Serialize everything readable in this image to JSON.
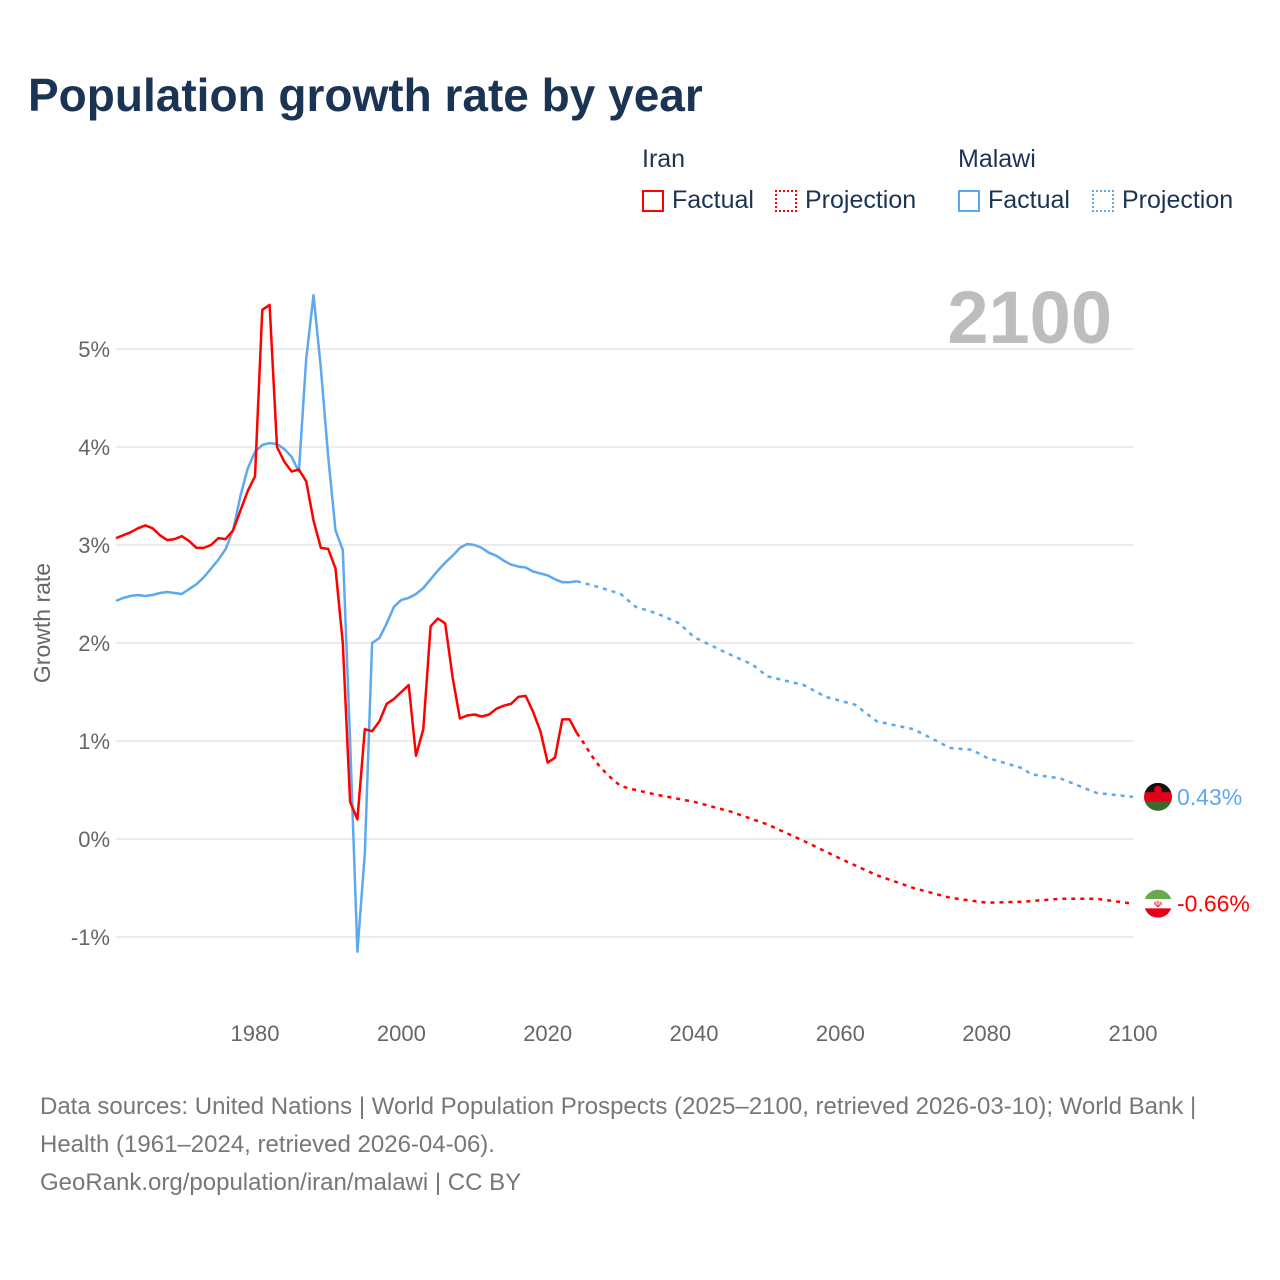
{
  "title": "Population growth rate by year",
  "legend": {
    "groups": [
      {
        "name": "Iran",
        "color": "#ff0000",
        "factual_label": "Factual",
        "projection_label": "Projection"
      },
      {
        "name": "Malawi",
        "color": "#5ea8ee",
        "factual_label": "Factual",
        "projection_label": "Projection"
      }
    ]
  },
  "current_year": "2100",
  "footer": {
    "sources": "Data sources: United Nations | World Population Prospects (2025–2100, retrieved 2026-03-10); World Bank | Health (1961–2024, retrieved 2026-04-06).",
    "credit": "GeoRank.org/population/iran/malawi | CC BY"
  },
  "chart_data": {
    "type": "line",
    "title": "Population growth rate by year",
    "xlabel": "",
    "ylabel": "Growth rate",
    "xlim": [
      1961,
      2100
    ],
    "ylim": [
      -1.5,
      5.6
    ],
    "x_ticks": [
      "1980",
      "2000",
      "2020",
      "2040",
      "2060",
      "2080",
      "2100"
    ],
    "y_ticks": [
      "-1%",
      "0%",
      "1%",
      "2%",
      "3%",
      "4%",
      "5%"
    ],
    "grid": true,
    "series": [
      {
        "name": "Iran",
        "color": "#ff0000",
        "end_label": "-0.66%",
        "flag": "iran-flag",
        "factual": {
          "x": [
            1961,
            1962,
            1963,
            1964,
            1965,
            1966,
            1967,
            1968,
            1969,
            1970,
            1971,
            1972,
            1973,
            1974,
            1975,
            1976,
            1977,
            1978,
            1979,
            1980,
            1981,
            1982,
            1983,
            1984,
            1985,
            1986,
            1987,
            1988,
            1989,
            1990,
            1991,
            1992,
            1993,
            1994,
            1995,
            1996,
            1997,
            1998,
            1999,
            2000,
            2001,
            2002,
            2003,
            2004,
            2005,
            2006,
            2007,
            2008,
            2009,
            2010,
            2011,
            2012,
            2013,
            2014,
            2015,
            2016,
            2017,
            2018,
            2019,
            2020,
            2021,
            2022,
            2023,
            2024
          ],
          "y": [
            3.07,
            3.1,
            3.13,
            3.17,
            3.2,
            3.17,
            3.1,
            3.05,
            3.06,
            3.09,
            3.04,
            2.97,
            2.97,
            3.0,
            3.07,
            3.06,
            3.15,
            3.35,
            3.55,
            3.7,
            5.4,
            5.45,
            4.0,
            3.85,
            3.75,
            3.77,
            3.65,
            3.25,
            2.97,
            2.96,
            2.76,
            2.0,
            0.38,
            0.2,
            1.12,
            1.1,
            1.2,
            1.38,
            1.43,
            1.5,
            1.57,
            0.85,
            1.12,
            2.17,
            2.25,
            2.2,
            1.65,
            1.23,
            1.26,
            1.27,
            1.25,
            1.27,
            1.33,
            1.36,
            1.38,
            1.45,
            1.46,
            1.3,
            1.1,
            0.78,
            0.83,
            1.22,
            1.22,
            1.08
          ]
        },
        "projection": {
          "x": [
            2024,
            2025,
            2026,
            2027,
            2028,
            2029,
            2030,
            2032,
            2035,
            2040,
            2045,
            2050,
            2055,
            2060,
            2065,
            2070,
            2075,
            2080,
            2085,
            2090,
            2095,
            2100
          ],
          "y": [
            1.08,
            0.97,
            0.85,
            0.75,
            0.67,
            0.6,
            0.54,
            0.5,
            0.45,
            0.38,
            0.28,
            0.15,
            -0.02,
            -0.2,
            -0.37,
            -0.5,
            -0.6,
            -0.65,
            -0.64,
            -0.61,
            -0.61,
            -0.66
          ]
        }
      },
      {
        "name": "Malawi",
        "color": "#5ea8ee",
        "end_label": "0.43%",
        "flag": "malawi-flag",
        "factual": {
          "x": [
            1961,
            1962,
            1963,
            1964,
            1965,
            1966,
            1967,
            1968,
            1969,
            1970,
            1971,
            1972,
            1973,
            1974,
            1975,
            1976,
            1977,
            1978,
            1979,
            1980,
            1981,
            1982,
            1983,
            1984,
            1985,
            1986,
            1987,
            1988,
            1989,
            1990,
            1991,
            1992,
            1993,
            1994,
            1995,
            1996,
            1997,
            1998,
            1999,
            2000,
            2001,
            2002,
            2003,
            2004,
            2005,
            2006,
            2007,
            2008,
            2009,
            2010,
            2011,
            2012,
            2013,
            2014,
            2015,
            2016,
            2017,
            2018,
            2019,
            2020,
            2021,
            2022,
            2023,
            2024
          ],
          "y": [
            2.43,
            2.46,
            2.48,
            2.49,
            2.48,
            2.49,
            2.51,
            2.52,
            2.51,
            2.5,
            2.55,
            2.6,
            2.67,
            2.76,
            2.85,
            2.96,
            3.15,
            3.5,
            3.78,
            3.95,
            4.02,
            4.04,
            4.03,
            3.98,
            3.9,
            3.75,
            4.9,
            5.55,
            4.8,
            3.9,
            3.15,
            2.95,
            1.0,
            -1.15,
            -0.15,
            2.0,
            2.05,
            2.2,
            2.37,
            2.44,
            2.46,
            2.5,
            2.56,
            2.65,
            2.74,
            2.82,
            2.89,
            2.97,
            3.01,
            3.0,
            2.97,
            2.92,
            2.89,
            2.84,
            2.8,
            2.78,
            2.77,
            2.73,
            2.71,
            2.69,
            2.65,
            2.62,
            2.62,
            2.63
          ]
        },
        "projection": {
          "x": [
            2024,
            2027,
            2030,
            2032,
            2035,
            2038,
            2040,
            2045,
            2048,
            2050,
            2055,
            2058,
            2062,
            2065,
            2070,
            2075,
            2078,
            2080,
            2085,
            2086,
            2090,
            2095,
            2100
          ],
          "y": [
            2.63,
            2.57,
            2.5,
            2.37,
            2.3,
            2.2,
            2.06,
            1.88,
            1.78,
            1.66,
            1.57,
            1.45,
            1.37,
            1.2,
            1.12,
            0.93,
            0.91,
            0.83,
            0.72,
            0.66,
            0.62,
            0.47,
            0.43
          ]
        }
      }
    ]
  }
}
